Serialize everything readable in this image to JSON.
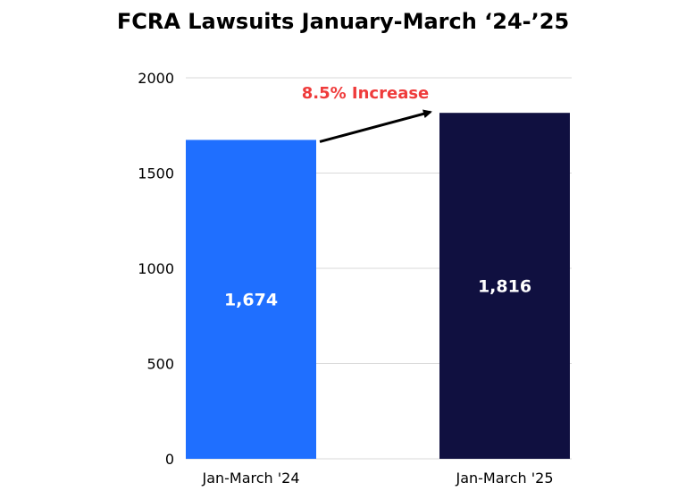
{
  "chart_data": {
    "type": "bar",
    "title": "FCRA Lawsuits January-March ‘24-’25",
    "categories": [
      "Jan-March '24",
      "Jan-March '25"
    ],
    "values": [
      1674,
      1816
    ],
    "data_labels": [
      "1,674",
      "1,816"
    ],
    "colors": [
      "#1f6fff",
      "#101040"
    ],
    "ylim": [
      0,
      2000
    ],
    "yticks": [
      0,
      500,
      1000,
      1500,
      2000
    ],
    "grid": true,
    "annotation": {
      "text": "8.5% Increase",
      "color": "#ef3b3b"
    }
  }
}
